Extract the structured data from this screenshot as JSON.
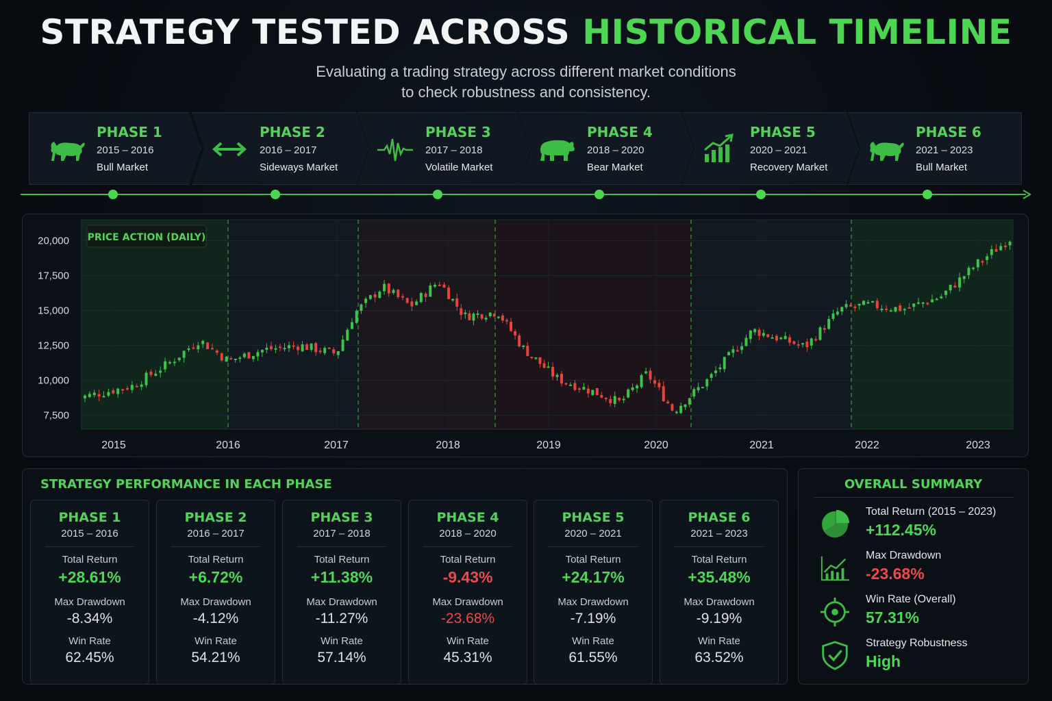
{
  "title": {
    "part1": "STRATEGY TESTED ACROSS",
    "part2": "HISTORICAL TIMELINE"
  },
  "subtitle": {
    "line1": "Evaluating a trading strategy across different market conditions",
    "line2": "to check robustness and consistency."
  },
  "colors": {
    "accent": "#4cd652",
    "negative": "#ef4a4a",
    "bull_candle": "#3fc24a",
    "bear_candle": "#e5443c",
    "background": "#080b10"
  },
  "phases": [
    {
      "name": "PHASE 1",
      "years": "2015 – 2016",
      "market": "Bull Market",
      "icon": "bull-icon"
    },
    {
      "name": "PHASE 2",
      "years": "2016 – 2017",
      "market": "Sideways Market",
      "icon": "sideways-arrows-icon"
    },
    {
      "name": "PHASE 3",
      "years": "2017 – 2018",
      "market": "Volatile Market",
      "icon": "pulse-wave-icon"
    },
    {
      "name": "PHASE 4",
      "years": "2018 – 2020",
      "market": "Bear Market",
      "icon": "bear-icon"
    },
    {
      "name": "PHASE 5",
      "years": "2020 – 2021",
      "market": "Recovery Market",
      "icon": "recovery-chart-icon"
    },
    {
      "name": "PHASE 6",
      "years": "2021 – 2023",
      "market": "Bull Market",
      "icon": "bull-icon"
    }
  ],
  "chart_data": {
    "type": "candlestick",
    "title": "PRICE ACTION (DAILY)",
    "xlabel": "",
    "ylabel": "",
    "x_ticks": [
      "2015",
      "2016",
      "2017",
      "2018",
      "2019",
      "2020",
      "2021",
      "2022",
      "2023"
    ],
    "y_ticks": [
      "20,000",
      "17,500",
      "15,000",
      "12,500",
      "10,000",
      "7,500"
    ],
    "ylim": [
      6500,
      21500
    ],
    "grid": true,
    "phase_regions": [
      {
        "phase": "PHASE 1",
        "tint": "bull"
      },
      {
        "phase": "PHASE 2",
        "tint": "neutral"
      },
      {
        "phase": "PHASE 3",
        "tint": "volatile"
      },
      {
        "phase": "PHASE 4",
        "tint": "bear"
      },
      {
        "phase": "PHASE 5",
        "tint": "neutral"
      },
      {
        "phase": "PHASE 6",
        "tint": "bull"
      }
    ],
    "price_anchors": [
      {
        "date": "2014-09-01",
        "close": 8700
      },
      {
        "date": "2015-03-01",
        "close": 9600
      },
      {
        "date": "2015-07-01",
        "close": 11300
      },
      {
        "date": "2015-10-01",
        "close": 12900
      },
      {
        "date": "2016-01-01",
        "close": 11400
      },
      {
        "date": "2016-05-01",
        "close": 12200
      },
      {
        "date": "2016-09-01",
        "close": 12500
      },
      {
        "date": "2017-01-01",
        "close": 11900
      },
      {
        "date": "2017-03-01",
        "close": 14800
      },
      {
        "date": "2017-06-01",
        "close": 16700
      },
      {
        "date": "2017-09-01",
        "close": 15300
      },
      {
        "date": "2017-12-01",
        "close": 17100
      },
      {
        "date": "2018-03-01",
        "close": 14600
      },
      {
        "date": "2018-07-01",
        "close": 14900
      },
      {
        "date": "2018-10-01",
        "close": 12300
      },
      {
        "date": "2019-02-01",
        "close": 10100
      },
      {
        "date": "2019-06-01",
        "close": 9200
      },
      {
        "date": "2019-09-01",
        "close": 8400
      },
      {
        "date": "2019-12-01",
        "close": 10500
      },
      {
        "date": "2020-03-01",
        "close": 7800
      },
      {
        "date": "2020-07-01",
        "close": 10100
      },
      {
        "date": "2020-12-01",
        "close": 13600
      },
      {
        "date": "2021-03-01",
        "close": 13000
      },
      {
        "date": "2021-06-01",
        "close": 12400
      },
      {
        "date": "2021-10-01",
        "close": 15100
      },
      {
        "date": "2022-01-01",
        "close": 15400
      },
      {
        "date": "2022-05-01",
        "close": 15100
      },
      {
        "date": "2022-09-01",
        "close": 16000
      },
      {
        "date": "2023-01-01",
        "close": 18400
      },
      {
        "date": "2023-05-01",
        "close": 20400
      }
    ]
  },
  "performance": {
    "title": "STRATEGY PERFORMANCE IN EACH PHASE",
    "labels": {
      "total_return": "Total Return",
      "max_drawdown": "Max Drawdown",
      "win_rate": "Win Rate"
    },
    "phases": [
      {
        "name": "PHASE 1",
        "years": "2015 – 2016",
        "total_return": "+28.61%",
        "max_drawdown": "-8.34%",
        "win_rate": "62.45%",
        "tr_negative": false,
        "dd_highlight": false
      },
      {
        "name": "PHASE 2",
        "years": "2016 – 2017",
        "total_return": "+6.72%",
        "max_drawdown": "-4.12%",
        "win_rate": "54.21%",
        "tr_negative": false,
        "dd_highlight": false
      },
      {
        "name": "PHASE 3",
        "years": "2017 – 2018",
        "total_return": "+11.38%",
        "max_drawdown": "-11.27%",
        "win_rate": "57.14%",
        "tr_negative": false,
        "dd_highlight": false
      },
      {
        "name": "PHASE 4",
        "years": "2018 – 2020",
        "total_return": "-9.43%",
        "max_drawdown": "-23.68%",
        "win_rate": "45.31%",
        "tr_negative": true,
        "dd_highlight": true
      },
      {
        "name": "PHASE 5",
        "years": "2020 – 2021",
        "total_return": "+24.17%",
        "max_drawdown": "-7.19%",
        "win_rate": "61.55%",
        "tr_negative": false,
        "dd_highlight": false
      },
      {
        "name": "PHASE 6",
        "years": "2021 – 2023",
        "total_return": "+35.48%",
        "max_drawdown": "-9.19%",
        "win_rate": "63.52%",
        "tr_negative": false,
        "dd_highlight": false
      }
    ]
  },
  "summary": {
    "title": "OVERALL SUMMARY",
    "items": [
      {
        "label": "Total Return (2015 – 2023)",
        "value": "+112.45%",
        "icon": "pie-chart-icon",
        "negative": false
      },
      {
        "label": "Max Drawdown",
        "value": "-23.68%",
        "icon": "line-chart-icon",
        "negative": true
      },
      {
        "label": "Win Rate (Overall)",
        "value": "57.31%",
        "icon": "target-icon",
        "negative": false
      },
      {
        "label": "Strategy Robustness",
        "value": "High",
        "icon": "shield-check-icon",
        "negative": false
      }
    ]
  }
}
